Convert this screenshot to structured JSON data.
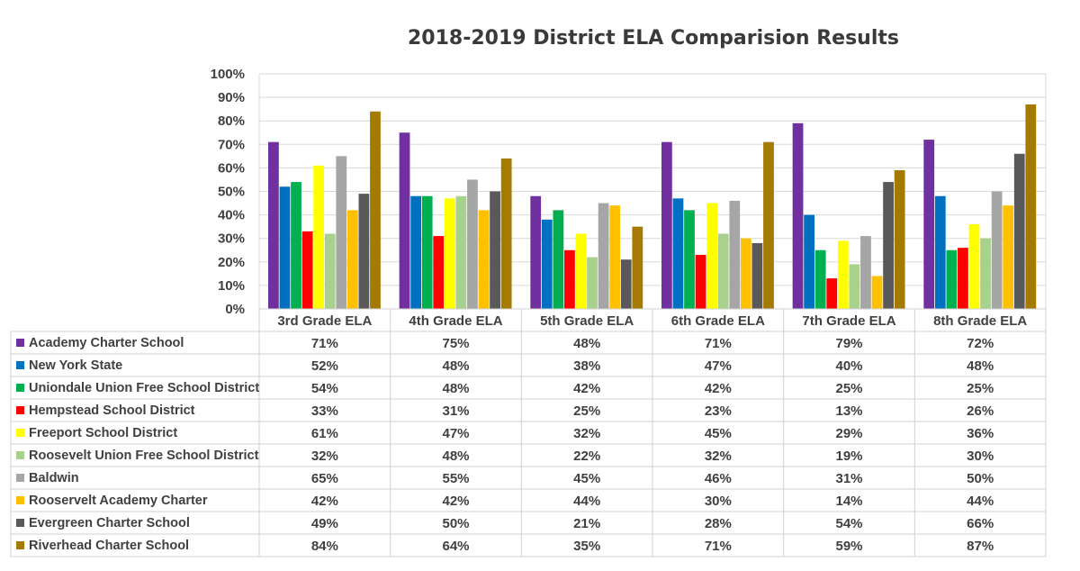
{
  "chart_data": {
    "type": "bar",
    "title": "2018-2019 District ELA Comparision Results",
    "categories": [
      "3rd Grade ELA",
      "4th Grade ELA",
      "5th Grade ELA",
      "6th Grade ELA",
      "7th Grade ELA",
      "8th Grade ELA"
    ],
    "y_ticks": [
      "0%",
      "10%",
      "20%",
      "30%",
      "40%",
      "50%",
      "60%",
      "70%",
      "80%",
      "90%",
      "100%"
    ],
    "ylim": [
      0,
      100
    ],
    "grid": true,
    "legend": "data-table",
    "series": [
      {
        "name": "Academy Charter School",
        "color": "#7030A0",
        "values": [
          71,
          75,
          48,
          71,
          79,
          72
        ],
        "labels": [
          "71%",
          "75%",
          "48%",
          "71%",
          "79%",
          "72%"
        ]
      },
      {
        "name": "New York State",
        "color": "#0070C0",
        "values": [
          52,
          48,
          38,
          47,
          40,
          48
        ],
        "labels": [
          "52%",
          "48%",
          "38%",
          "47%",
          "40%",
          "48%"
        ]
      },
      {
        "name": "Uniondale Union Free School District",
        "color": "#00B050",
        "values": [
          54,
          48,
          42,
          42,
          25,
          25
        ],
        "labels": [
          "54%",
          "48%",
          "42%",
          "42%",
          "25%",
          "25%"
        ]
      },
      {
        "name": "Hempstead School District",
        "color": "#FF0000",
        "values": [
          33,
          31,
          25,
          23,
          13,
          26
        ],
        "labels": [
          "33%",
          "31%",
          "25%",
          "23%",
          "13%",
          "26%"
        ]
      },
      {
        "name": "Freeport School District",
        "color": "#FFFF00",
        "values": [
          61,
          47,
          32,
          45,
          29,
          36
        ],
        "labels": [
          "61%",
          "47%",
          "32%",
          "45%",
          "29%",
          "36%"
        ]
      },
      {
        "name": "Roosevelt Union Free School District",
        "color": "#A9D18E",
        "values": [
          32,
          48,
          22,
          32,
          19,
          30
        ],
        "labels": [
          "32%",
          "48%",
          "22%",
          "32%",
          "19%",
          "30%"
        ]
      },
      {
        "name": "Baldwin",
        "color": "#A6A6A6",
        "values": [
          65,
          55,
          45,
          46,
          31,
          50
        ],
        "labels": [
          "65%",
          "55%",
          "45%",
          "46%",
          "31%",
          "50%"
        ]
      },
      {
        "name": "Rooservelt Academy Charter",
        "color": "#FFC000",
        "values": [
          42,
          42,
          44,
          30,
          14,
          44
        ],
        "labels": [
          "42%",
          "42%",
          "44%",
          "30%",
          "14%",
          "44%"
        ]
      },
      {
        "name": "Evergreen Charter School",
        "color": "#595959",
        "values": [
          49,
          50,
          21,
          28,
          54,
          66
        ],
        "labels": [
          "49%",
          "50%",
          "21%",
          "28%",
          "54%",
          "66%"
        ]
      },
      {
        "name": "Riverhead Charter School",
        "color": "#A57A00",
        "values": [
          84,
          64,
          35,
          71,
          59,
          87
        ],
        "labels": [
          "84%",
          "64%",
          "35%",
          "71%",
          "59%",
          "87%"
        ]
      }
    ]
  }
}
